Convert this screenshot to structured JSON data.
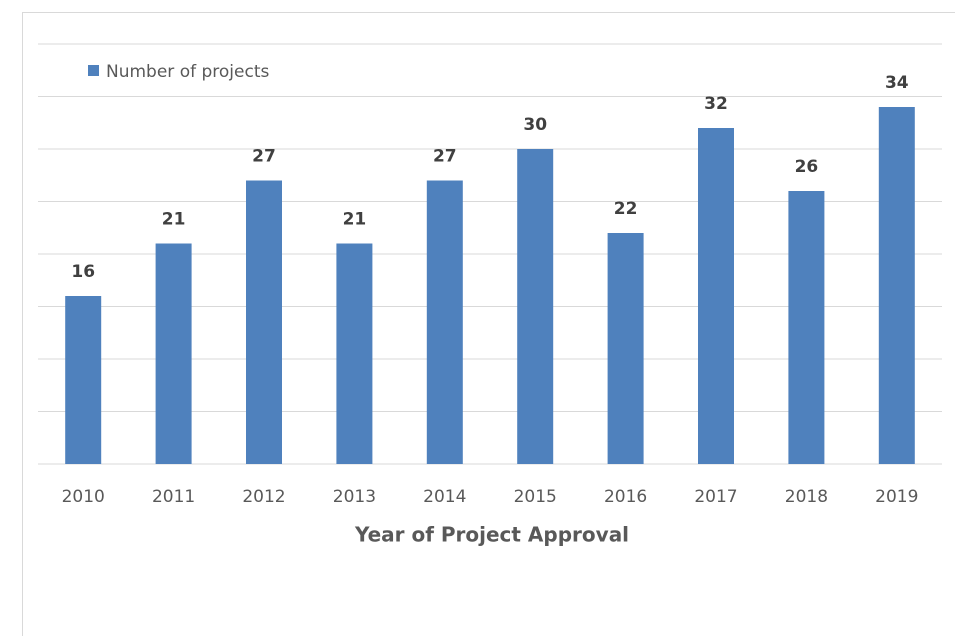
{
  "chart_data": {
    "type": "bar",
    "x_label": "Year of Project Approval",
    "categories": [
      "2010",
      "2011",
      "2012",
      "2013",
      "2014",
      "2015",
      "2016",
      "2017",
      "2018",
      "2019"
    ],
    "series": [
      {
        "name": "Number of projects",
        "color": "#4f81bd",
        "values": [
          16,
          21,
          27,
          21,
          27,
          30,
          22,
          32,
          26,
          34
        ]
      }
    ],
    "ylim": [
      0,
      40
    ],
    "yticks": [
      0,
      5,
      10,
      15,
      20,
      25,
      30,
      35,
      40
    ],
    "ytick_labels": false,
    "grid": true,
    "legend": "top-left"
  }
}
